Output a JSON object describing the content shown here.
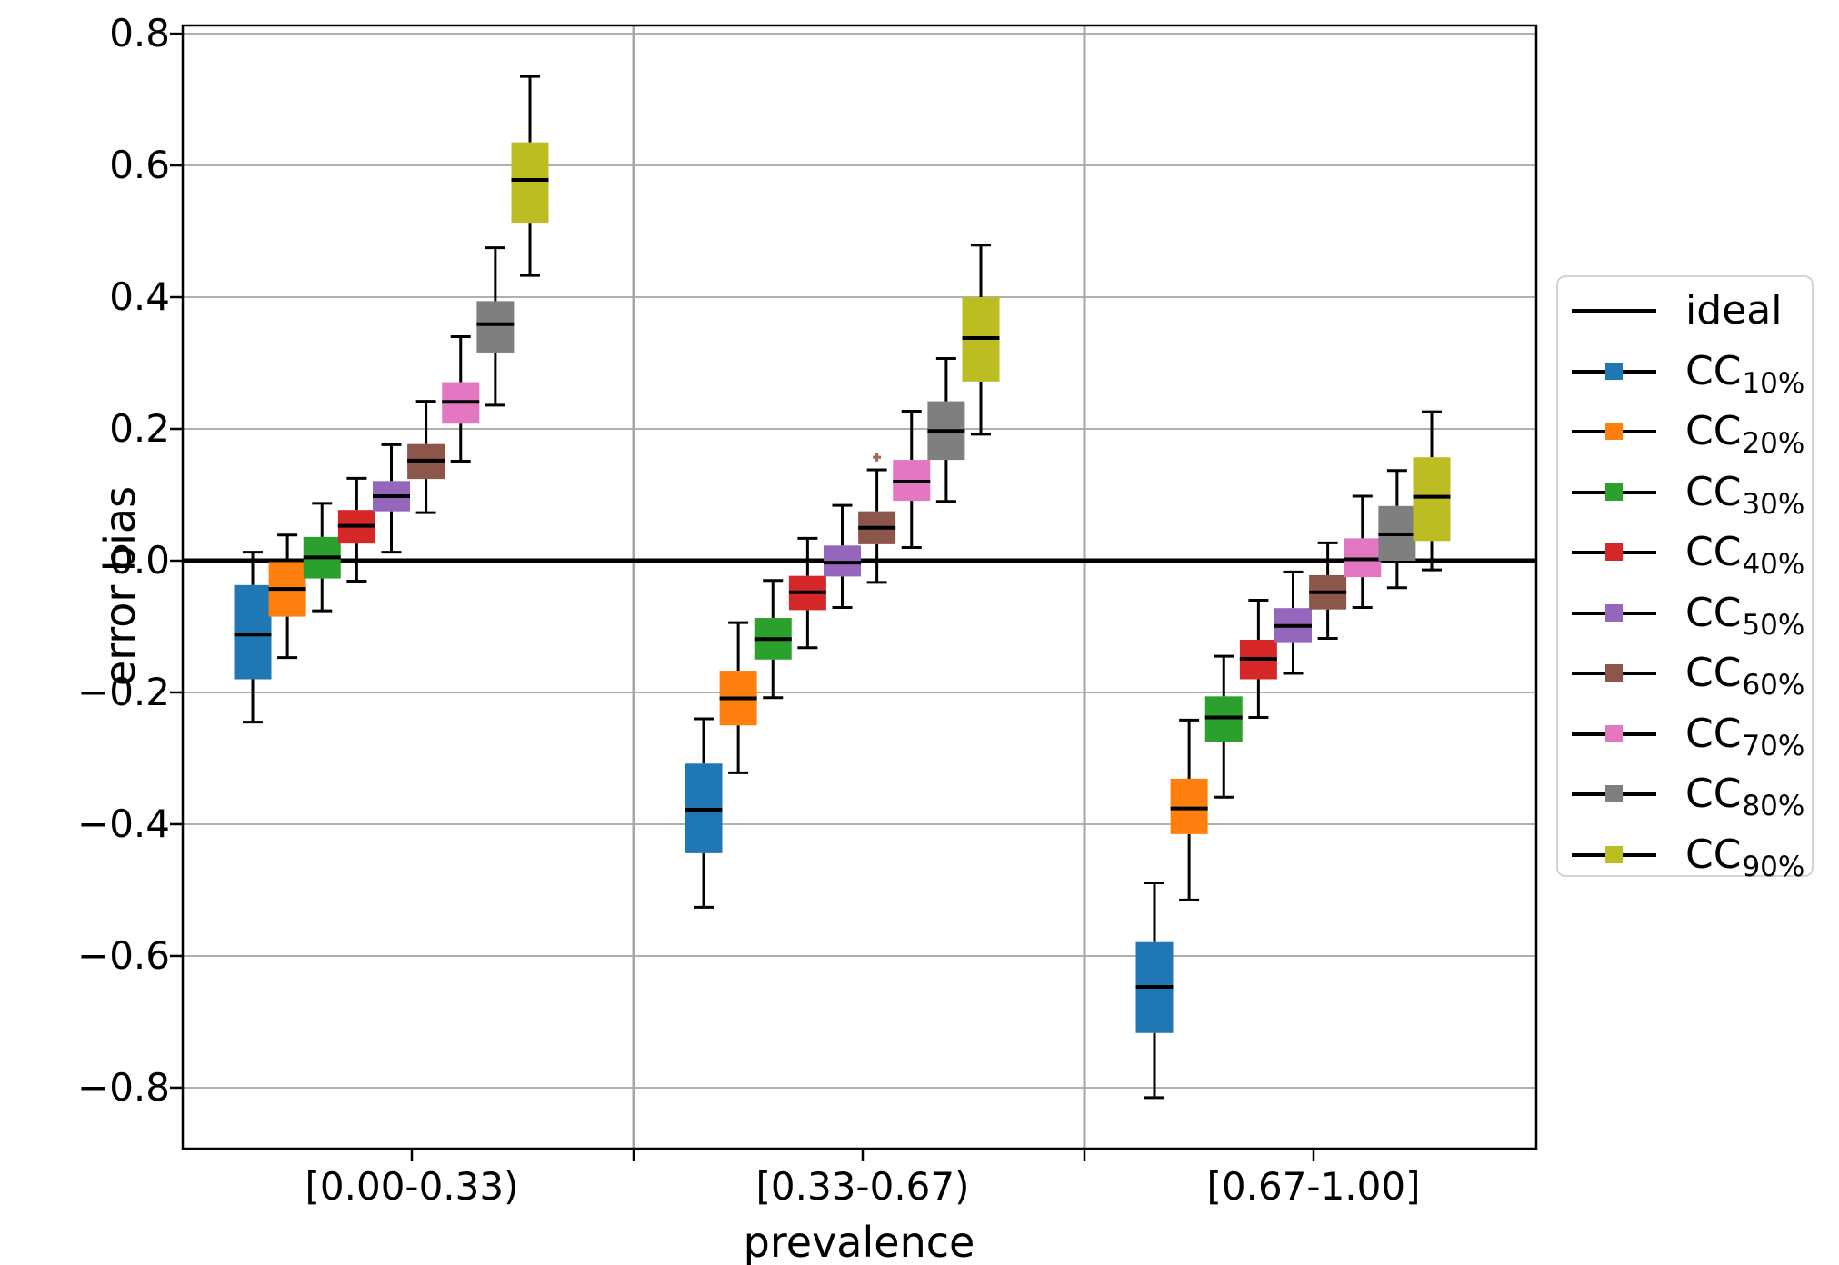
{
  "figure": {
    "background": "#ffffff"
  },
  "axes": {
    "ylabel": "error bias",
    "xlabel": "prevalence",
    "yticks": [
      {
        "value": 0.8,
        "label": "0.8"
      },
      {
        "value": 0.6,
        "label": "0.6"
      },
      {
        "value": 0.4,
        "label": "0.4"
      },
      {
        "value": 0.2,
        "label": "0.2"
      },
      {
        "value": 0.0,
        "label": "0.0"
      },
      {
        "value": -0.2,
        "label": "−0.2"
      },
      {
        "value": -0.4,
        "label": "−0.4"
      },
      {
        "value": -0.6,
        "label": "−0.6"
      },
      {
        "value": -0.8,
        "label": "−0.8"
      }
    ],
    "grid_color": "#b0b0b0",
    "separator_color": "#a6a6a6",
    "spine_color": "#000000"
  },
  "legend": {
    "entries": [
      {
        "label": "ideal",
        "sub": "",
        "type": "line",
        "color": "#000000"
      },
      {
        "label": "CC",
        "sub": "10%",
        "type": "box",
        "color": "#1f77b4"
      },
      {
        "label": "CC",
        "sub": "20%",
        "type": "box",
        "color": "#ff7f0e"
      },
      {
        "label": "CC",
        "sub": "30%",
        "type": "box",
        "color": "#2ca02c"
      },
      {
        "label": "CC",
        "sub": "40%",
        "type": "box",
        "color": "#d62728"
      },
      {
        "label": "CC",
        "sub": "50%",
        "type": "box",
        "color": "#9467bd"
      },
      {
        "label": "CC",
        "sub": "60%",
        "type": "box",
        "color": "#8c564b"
      },
      {
        "label": "CC",
        "sub": "70%",
        "type": "box",
        "color": "#e377c2"
      },
      {
        "label": "CC",
        "sub": "80%",
        "type": "box",
        "color": "#7f7f7f"
      },
      {
        "label": "CC",
        "sub": "90%",
        "type": "box",
        "color": "#bcbd22"
      }
    ]
  },
  "chart_data": {
    "type": "boxplot-grouped",
    "title": "",
    "xlabel": "prevalence",
    "ylabel": "error bias",
    "ylim": [
      -0.8925,
      0.8125
    ],
    "grid": "horizontal",
    "legend_position": "right-outside",
    "ideal_line_y": 0.0,
    "categories": [
      "[0.00-0.33)",
      "[0.33-0.67)",
      "[0.67-1.00]"
    ],
    "series": [
      {
        "name": "CC 10%",
        "color": "#1f77b4",
        "boxes": [
          {
            "whislo": -0.245,
            "q1": -0.18,
            "med": -0.112,
            "q3": -0.037,
            "whishi": 0.013,
            "fliers": []
          },
          {
            "whislo": -0.526,
            "q1": -0.444,
            "med": -0.378,
            "q3": -0.308,
            "whishi": -0.24,
            "fliers": []
          },
          {
            "whislo": -0.815,
            "q1": -0.717,
            "med": -0.647,
            "q3": -0.579,
            "whishi": -0.489,
            "fliers": []
          }
        ]
      },
      {
        "name": "CC 20%",
        "color": "#ff7f0e",
        "boxes": [
          {
            "whislo": -0.147,
            "q1": -0.085,
            "med": -0.043,
            "q3": -0.002,
            "whishi": 0.039,
            "fliers": []
          },
          {
            "whislo": -0.322,
            "q1": -0.25,
            "med": -0.209,
            "q3": -0.167,
            "whishi": -0.094,
            "fliers": []
          },
          {
            "whislo": -0.515,
            "q1": -0.415,
            "med": -0.376,
            "q3": -0.331,
            "whishi": -0.242,
            "fliers": []
          }
        ]
      },
      {
        "name": "CC 30%",
        "color": "#2ca02c",
        "boxes": [
          {
            "whislo": -0.076,
            "q1": -0.027,
            "med": 0.005,
            "q3": 0.036,
            "whishi": 0.087,
            "fliers": []
          },
          {
            "whislo": -0.208,
            "q1": -0.15,
            "med": -0.119,
            "q3": -0.087,
            "whishi": -0.03,
            "fliers": []
          },
          {
            "whislo": -0.359,
            "q1": -0.275,
            "med": -0.238,
            "q3": -0.206,
            "whishi": -0.145,
            "fliers": []
          }
        ]
      },
      {
        "name": "CC 40%",
        "color": "#d62728",
        "boxes": [
          {
            "whislo": -0.031,
            "q1": 0.026,
            "med": 0.053,
            "q3": 0.077,
            "whishi": 0.125,
            "fliers": []
          },
          {
            "whislo": -0.132,
            "q1": -0.075,
            "med": -0.048,
            "q3": -0.023,
            "whishi": 0.034,
            "fliers": []
          },
          {
            "whislo": -0.238,
            "q1": -0.18,
            "med": -0.149,
            "q3": -0.12,
            "whishi": -0.06,
            "fliers": []
          }
        ]
      },
      {
        "name": "CC 50%",
        "color": "#9467bd",
        "boxes": [
          {
            "whislo": 0.013,
            "q1": 0.075,
            "med": 0.098,
            "q3": 0.121,
            "whishi": 0.176,
            "fliers": []
          },
          {
            "whislo": -0.071,
            "q1": -0.024,
            "med": -0.003,
            "q3": 0.023,
            "whishi": 0.084,
            "fliers": []
          },
          {
            "whislo": -0.171,
            "q1": -0.125,
            "med": -0.099,
            "q3": -0.072,
            "whishi": -0.017,
            "fliers": []
          }
        ]
      },
      {
        "name": "CC 60%",
        "color": "#8c564b",
        "boxes": [
          {
            "whislo": 0.073,
            "q1": 0.124,
            "med": 0.152,
            "q3": 0.177,
            "whishi": 0.242,
            "fliers": []
          },
          {
            "whislo": -0.033,
            "q1": 0.025,
            "med": 0.05,
            "q3": 0.075,
            "whishi": 0.138,
            "fliers": [
              0.157
            ]
          },
          {
            "whislo": -0.118,
            "q1": -0.074,
            "med": -0.048,
            "q3": -0.022,
            "whishi": 0.027,
            "fliers": []
          }
        ]
      },
      {
        "name": "CC 70%",
        "color": "#e377c2",
        "boxes": [
          {
            "whislo": 0.151,
            "q1": 0.208,
            "med": 0.241,
            "q3": 0.271,
            "whishi": 0.34,
            "fliers": []
          },
          {
            "whislo": 0.02,
            "q1": 0.091,
            "med": 0.12,
            "q3": 0.153,
            "whishi": 0.227,
            "fliers": []
          },
          {
            "whislo": -0.071,
            "q1": -0.025,
            "med": 0.002,
            "q3": 0.034,
            "whishi": 0.098,
            "fliers": []
          }
        ]
      },
      {
        "name": "CC 80%",
        "color": "#7f7f7f",
        "boxes": [
          {
            "whislo": 0.236,
            "q1": 0.316,
            "med": 0.359,
            "q3": 0.394,
            "whishi": 0.475,
            "fliers": []
          },
          {
            "whislo": 0.09,
            "q1": 0.153,
            "med": 0.197,
            "q3": 0.242,
            "whishi": 0.307,
            "fliers": []
          },
          {
            "whislo": -0.041,
            "q1": 0.0,
            "med": 0.04,
            "q3": 0.083,
            "whishi": 0.137,
            "fliers": []
          }
        ]
      },
      {
        "name": "CC 90%",
        "color": "#bcbd22",
        "boxes": [
          {
            "whislo": 0.433,
            "q1": 0.513,
            "med": 0.578,
            "q3": 0.635,
            "whishi": 0.735,
            "fliers": []
          },
          {
            "whislo": 0.192,
            "q1": 0.272,
            "med": 0.338,
            "q3": 0.4,
            "whishi": 0.479,
            "fliers": []
          },
          {
            "whislo": -0.014,
            "q1": 0.03,
            "med": 0.097,
            "q3": 0.157,
            "whishi": 0.226,
            "fliers": []
          }
        ]
      }
    ],
    "flier_color": "#9c6b60"
  }
}
